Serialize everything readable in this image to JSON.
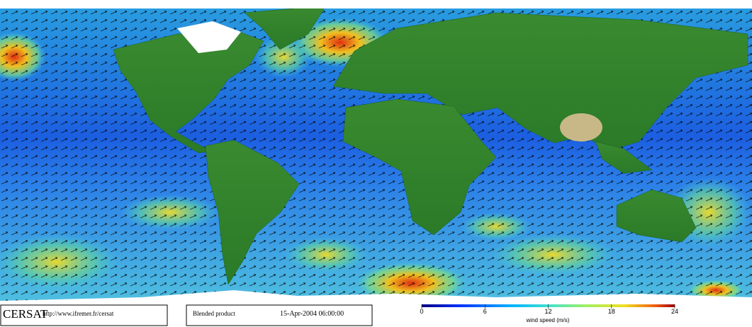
{
  "footer": {
    "logo": "CERSAT",
    "url": "http://www.ifremer.fr/cersat",
    "product": "Blended product",
    "timestamp": "15-Apr-2004 06:00:00"
  },
  "colorbar": {
    "label": "wind speed (m/s)",
    "lim": [
      0,
      24
    ],
    "ticks": [
      0,
      6,
      12,
      18,
      24
    ]
  }
}
